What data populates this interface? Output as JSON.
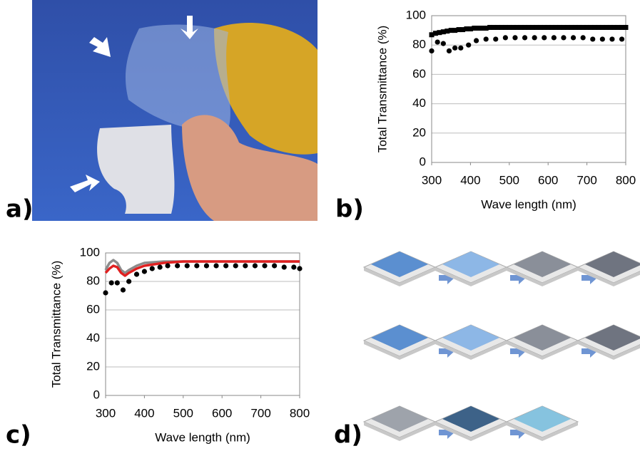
{
  "panel_labels": [
    "a)",
    "b)",
    "c)",
    "d)"
  ],
  "chart_data": [
    {
      "type": "scatter",
      "y_label": "Total Transmittance (%)",
      "x_label": "Wave length (nm)",
      "xlim": [
        300,
        800
      ],
      "xticks": [
        300,
        400,
        500,
        600,
        700,
        800
      ],
      "ylim": [
        0,
        100
      ],
      "yticks": [
        0,
        20,
        40,
        60,
        80,
        100
      ],
      "grid": true,
      "series": [
        {
          "color": "#000000",
          "marker": "square",
          "x": [
            300,
            310,
            320,
            330,
            340,
            350,
            360,
            370,
            380,
            390,
            400,
            410,
            420,
            430,
            440,
            450,
            460,
            470,
            480,
            490,
            500,
            510,
            520,
            530,
            540,
            550,
            560,
            570,
            580,
            590,
            600,
            610,
            620,
            630,
            640,
            650,
            660,
            670,
            680,
            690,
            700,
            710,
            720,
            730,
            740,
            750,
            760,
            770,
            780,
            790,
            800
          ],
          "values": [
            87,
            88,
            88.5,
            89,
            89.5,
            90,
            90,
            90.5,
            90.5,
            91,
            91,
            91.5,
            91.5,
            91.5,
            91.5,
            92,
            92,
            92,
            92,
            92,
            92,
            92,
            92,
            92,
            92,
            92,
            92,
            92,
            92,
            92,
            92,
            92,
            92,
            92,
            92,
            92,
            92,
            92,
            92,
            92,
            92,
            92,
            92,
            92,
            92,
            92,
            92,
            92,
            92,
            92,
            92
          ]
        },
        {
          "color": "#000000",
          "marker": "circle",
          "x": [
            300,
            315,
            330,
            345,
            360,
            375,
            395,
            415,
            440,
            465,
            490,
            515,
            540,
            565,
            590,
            615,
            640,
            665,
            690,
            715,
            740,
            765,
            790
          ],
          "values": [
            76,
            82,
            81,
            76,
            78,
            78,
            80,
            83,
            84,
            84,
            85,
            85,
            85,
            85,
            85,
            85,
            85,
            85,
            85,
            84,
            84,
            84,
            84
          ]
        }
      ]
    },
    {
      "type": "line",
      "y_label": "Total Transmittance (%)",
      "x_label": "Wave length (nm)",
      "xlim": [
        300,
        800
      ],
      "xticks": [
        300,
        400,
        500,
        600,
        700,
        800
      ],
      "ylim": [
        0,
        100
      ],
      "yticks": [
        0,
        20,
        40,
        60,
        80,
        100
      ],
      "grid": true,
      "series": [
        {
          "color": "#8c8c8c",
          "mode": "line",
          "x": [
            300,
            310,
            320,
            330,
            340,
            350,
            360,
            380,
            400,
            450,
            500,
            550,
            600,
            650,
            700,
            750,
            800
          ],
          "values": [
            88,
            93,
            95,
            93,
            88,
            86,
            88,
            91,
            93,
            94,
            94,
            94,
            94,
            94,
            94,
            94,
            94
          ]
        },
        {
          "color": "#e02020",
          "mode": "line",
          "x": [
            300,
            310,
            320,
            330,
            340,
            350,
            360,
            380,
            400,
            450,
            500,
            550,
            600,
            650,
            700,
            750,
            800
          ],
          "values": [
            86,
            89,
            91,
            90,
            86,
            84,
            86,
            89,
            91,
            93,
            94,
            94,
            94,
            94,
            94,
            94,
            94
          ]
        },
        {
          "color": "#000000",
          "mode": "markers",
          "x": [
            300,
            315,
            330,
            345,
            360,
            380,
            400,
            420,
            440,
            460,
            485,
            510,
            535,
            560,
            585,
            610,
            635,
            660,
            685,
            710,
            735,
            760,
            785,
            800
          ],
          "values": [
            72,
            79,
            79,
            74,
            80,
            85,
            87,
            89,
            90,
            91,
            91,
            91,
            91,
            91,
            91,
            91,
            91,
            91,
            91,
            91,
            91,
            90,
            90,
            89
          ]
        }
      ]
    }
  ]
}
